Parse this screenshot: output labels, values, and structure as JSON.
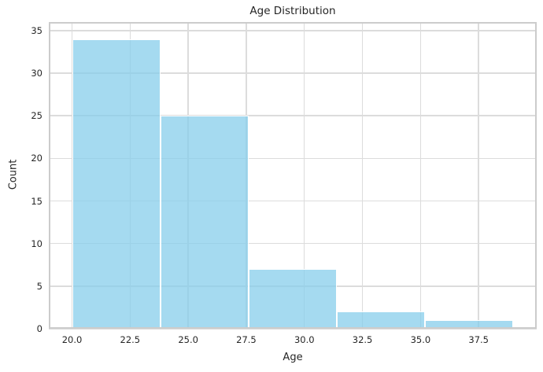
{
  "chart_data": {
    "type": "bar",
    "subtype": "histogram",
    "title": "Age Distribution",
    "xlabel": "Age",
    "ylabel": "Count",
    "bin_edges": [
      20.0,
      23.8,
      27.6,
      31.4,
      35.2,
      39.0
    ],
    "counts": [
      34,
      25,
      7,
      2,
      1
    ],
    "x_tick_labels": [
      "20.0",
      "22.5",
      "25.0",
      "27.5",
      "30.0",
      "32.5",
      "35.0",
      "37.5"
    ],
    "x_tick_values": [
      20.0,
      22.5,
      25.0,
      27.5,
      30.0,
      32.5,
      35.0,
      37.5
    ],
    "y_tick_labels": [
      "0",
      "5",
      "10",
      "15",
      "20",
      "25",
      "30",
      "35"
    ],
    "y_tick_values": [
      0,
      5,
      10,
      15,
      20,
      25,
      30,
      35
    ],
    "xlim": [
      19.0,
      40.0
    ],
    "ylim": [
      0,
      36
    ],
    "grid": true,
    "legend": null,
    "style": {
      "bar_color": "#87CEEB",
      "bar_alpha": 0.75,
      "bar_edge_color": "#ffffff",
      "grid_color": "#dcdcdc",
      "spine_color": "#cccccc",
      "text_color": "#262626",
      "background_color": "#ffffff"
    }
  }
}
